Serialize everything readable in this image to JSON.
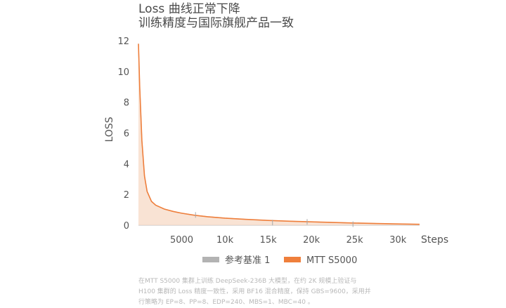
{
  "header": {
    "title": "Loss 曲线正常下降",
    "subtitle": "训练精度与国际旗舰产品一致"
  },
  "chart_data": {
    "type": "area",
    "xlabel": "Steps",
    "ylabel": "LOSS",
    "xlim": [
      0,
      32500
    ],
    "ylim": [
      0,
      12
    ],
    "x_ticks": [
      5000,
      10000,
      15000,
      20000,
      25000,
      30000
    ],
    "x_tick_labels": [
      "5000",
      "10k",
      "15k",
      "20k",
      "25k",
      "30k"
    ],
    "y_ticks": [
      0,
      2,
      4,
      6,
      8,
      10,
      12
    ],
    "y_tick_labels": [
      "0",
      "2",
      "4",
      "6",
      "8",
      "10",
      "12"
    ],
    "grid": false,
    "legend_position": "bottom",
    "series": [
      {
        "name": "参考基准 1",
        "color": "#b3b3b3",
        "x": [
          0,
          150,
          400,
          700,
          1000,
          1500,
          2000,
          3000,
          4000,
          5000,
          6500,
          8000,
          10000,
          12500,
          15000,
          17500,
          20000,
          22500,
          25000,
          27500,
          30000,
          32500
        ],
        "y": [
          11.8,
          9.0,
          5.5,
          3.2,
          2.2,
          1.55,
          1.3,
          1.05,
          0.9,
          0.78,
          0.65,
          0.55,
          0.46,
          0.38,
          0.31,
          0.26,
          0.22,
          0.18,
          0.14,
          0.11,
          0.08,
          0.06
        ]
      },
      {
        "name": "MTT S5000",
        "color": "#ef7f3c",
        "x": [
          0,
          150,
          400,
          700,
          1000,
          1500,
          2000,
          3000,
          4000,
          5000,
          6500,
          8000,
          10000,
          12500,
          15000,
          17500,
          20000,
          22500,
          25000,
          27500,
          30000,
          32500
        ],
        "y": [
          11.8,
          9.0,
          5.5,
          3.2,
          2.2,
          1.55,
          1.3,
          1.05,
          0.9,
          0.78,
          0.65,
          0.55,
          0.46,
          0.38,
          0.31,
          0.26,
          0.22,
          0.18,
          0.14,
          0.11,
          0.08,
          0.06
        ],
        "spikes": [
          {
            "x": 6600,
            "y": 0.85
          },
          {
            "x": 15500,
            "y": 0.35
          },
          {
            "x": 19500,
            "y": 0.4
          },
          {
            "x": 24800,
            "y": 0.25
          }
        ]
      }
    ]
  },
  "caption": {
    "line1": "在MTT S5000 集群上训练 DeepSeek-236B 大模型，在约 2K 规模上验证与",
    "line2": "H100 集群的 Loss 精度一致性，采用 BF16 混合精度，保持 GBS=9600，采用并",
    "line3": "行策略为 EP=8、PP=8、EDP=240、MBS=1、MBC=40 。"
  }
}
